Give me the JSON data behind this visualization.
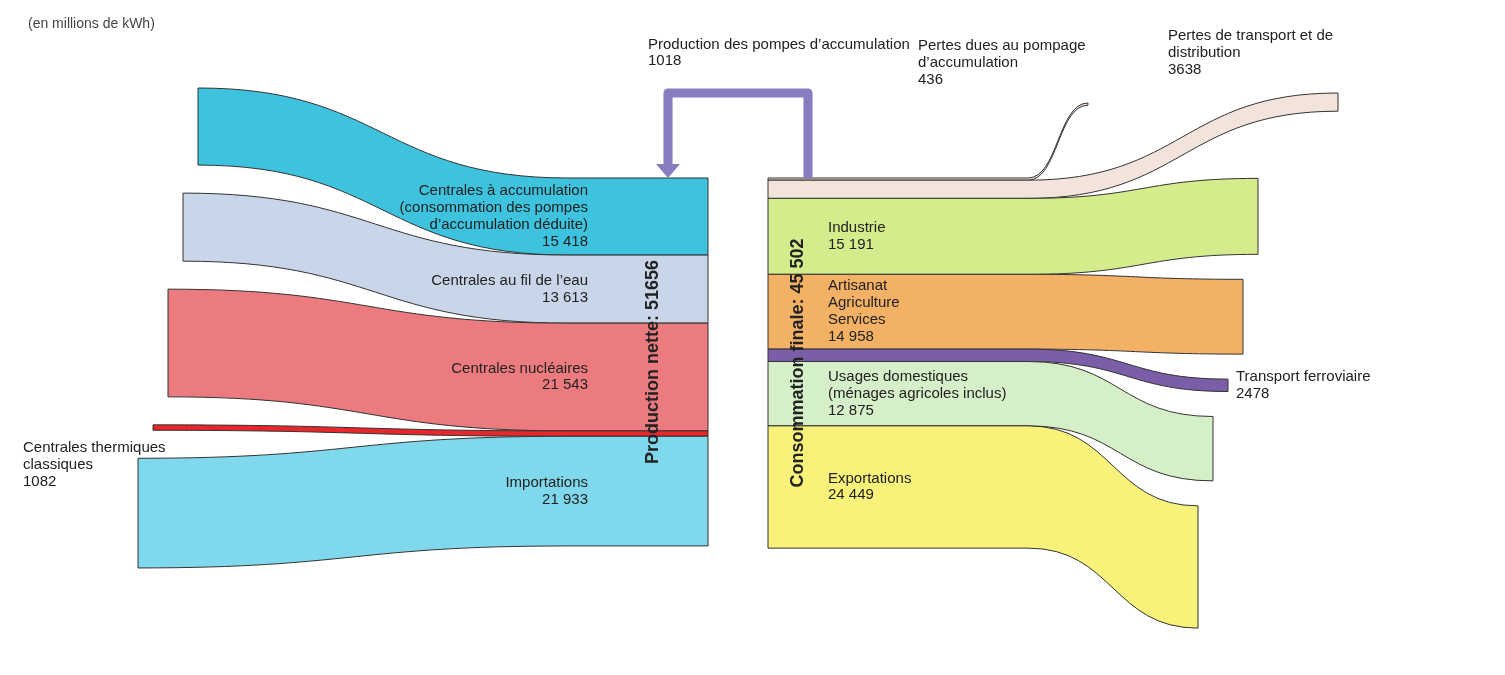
{
  "chart_data": [
    {
      "type": "other",
      "subtitle": "(en millions de kWh)",
      "annotations": [
        "Production nette: 51656"
      ],
      "categories": [
        "Centrales à accumulation\n(consommation des pompes\nd’accumulation déduite)",
        "Centrales au fil de l’eau",
        "Centrales nucléaires",
        "Centrales thermiques\nclassiques",
        "Importations"
      ],
      "values": [
        15418,
        13613,
        21543,
        1082,
        21933
      ],
      "value_labels": [
        "15 418",
        "13 613",
        "21 543",
        "1082",
        "21 933"
      ],
      "colors": [
        "#3ec3df",
        "#c9d6ea",
        "#ec7b7f",
        "#e8262c",
        "#7fd8ec"
      ]
    },
    {
      "type": "other",
      "annotations": [
        "Consommation finale: 45 502"
      ],
      "categories": [
        "Pertes dues au pompage\nd’accumulation",
        "Pertes de transport et de\ndistribution",
        "Industrie",
        "Artisanat\nAgriculture\nServices",
        "Transport ferroviaire",
        "Usages domestiques\n(ménages agricoles inclus)",
        "Exportations"
      ],
      "values": [
        436,
        3638,
        15191,
        14958,
        2478,
        12875,
        24449
      ],
      "value_labels": [
        "436",
        "3638",
        "15 191",
        "14 958",
        "2478",
        "12 875",
        "24 449"
      ],
      "colors": [
        "#f2e4da",
        "#f2e4da",
        "#d4ec8c",
        "#f3b166",
        "#7a5fa8",
        "#d5f0c8",
        "#f8f27a"
      ]
    },
    {
      "type": "other",
      "categories": [
        "Production des pompes d’accumulation"
      ],
      "values": [
        1018
      ],
      "value_labels": [
        "1018"
      ],
      "colors": [
        "#8a7cc0"
      ]
    }
  ]
}
